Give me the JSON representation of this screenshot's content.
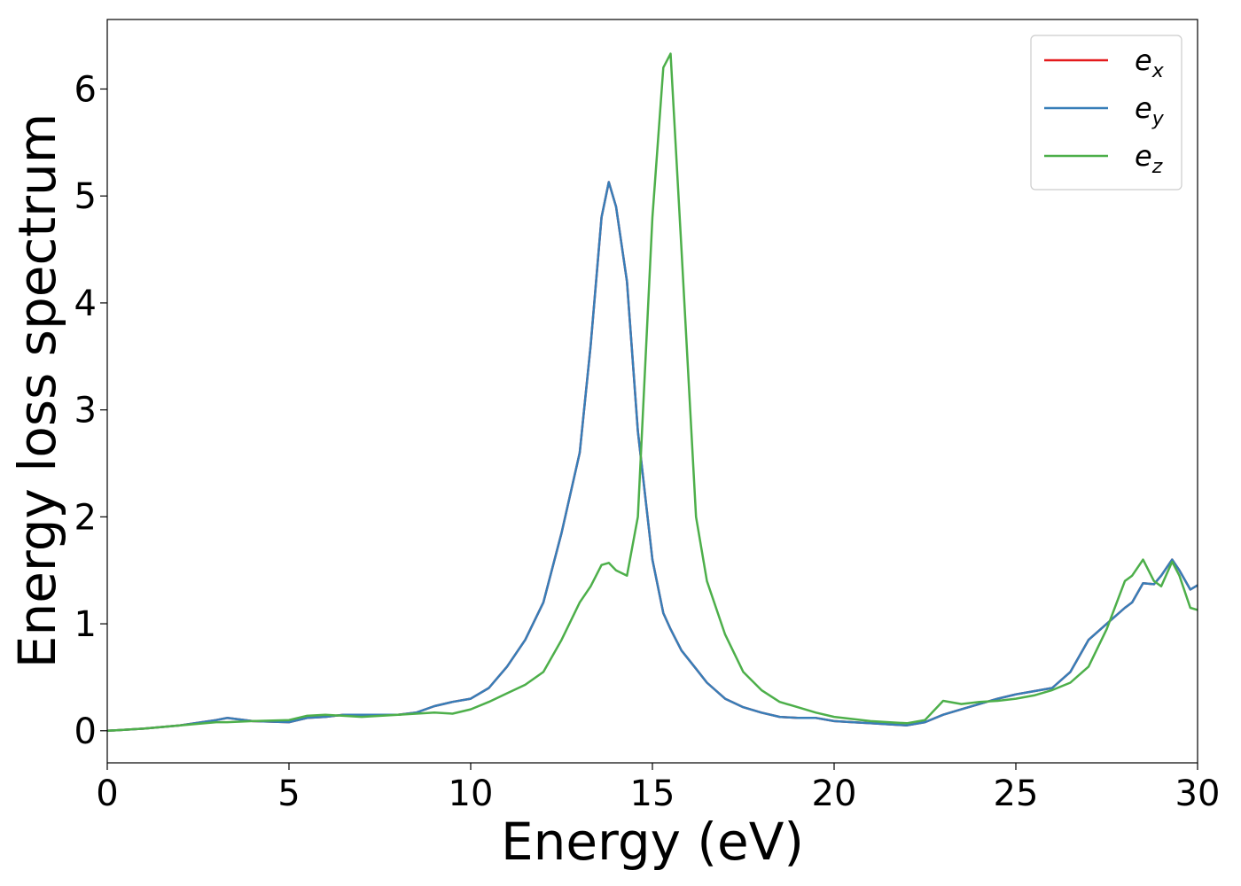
{
  "chart_data": {
    "type": "line",
    "title": "",
    "xlabel": "Energy (eV)",
    "ylabel": "Energy loss spectrum",
    "xlim": [
      0,
      30
    ],
    "ylim": [
      -0.3,
      6.65
    ],
    "xticks": [
      0,
      5,
      10,
      15,
      20,
      25,
      30
    ],
    "yticks": [
      0,
      1,
      2,
      3,
      4,
      5,
      6
    ],
    "grid": false,
    "legend_position": "top-right",
    "legend": [
      {
        "base": "e",
        "sub": "x",
        "color": "#e41a1c"
      },
      {
        "base": "e",
        "sub": "y",
        "color": "#377eb8"
      },
      {
        "base": "e",
        "sub": "z",
        "color": "#4daf4a"
      }
    ],
    "x": [
      0,
      1,
      2,
      3,
      3.3,
      4,
      5,
      5.5,
      6,
      6.5,
      7,
      8,
      8.5,
      9,
      9.5,
      10,
      10.5,
      11,
      11.5,
      12,
      12.5,
      13,
      13.3,
      13.6,
      13.8,
      14.0,
      14.3,
      14.6,
      15.0,
      15.3,
      15.5,
      15.8,
      16.2,
      16.5,
      17,
      17.5,
      18,
      18.5,
      19,
      19.5,
      20,
      20.5,
      21,
      22,
      22.5,
      23,
      23.5,
      24,
      24.5,
      25,
      25.5,
      26,
      26.5,
      27,
      27.5,
      28,
      28.2,
      28.5,
      28.8,
      29.0,
      29.3,
      29.5,
      29.8,
      30
    ],
    "series": [
      {
        "name": "e_x",
        "color": "#e41a1c",
        "values": [
          0,
          0.02,
          0.05,
          0.1,
          0.12,
          0.09,
          0.08,
          0.12,
          0.13,
          0.15,
          0.15,
          0.15,
          0.17,
          0.23,
          0.27,
          0.3,
          0.4,
          0.6,
          0.85,
          1.2,
          1.85,
          2.6,
          3.6,
          4.8,
          5.13,
          4.9,
          4.2,
          2.8,
          1.6,
          1.1,
          0.95,
          0.75,
          0.58,
          0.45,
          0.3,
          0.22,
          0.17,
          0.13,
          0.12,
          0.12,
          0.09,
          0.08,
          0.07,
          0.05,
          0.08,
          0.15,
          0.2,
          0.25,
          0.3,
          0.34,
          0.37,
          0.4,
          0.55,
          0.85,
          1.0,
          1.15,
          1.2,
          1.38,
          1.37,
          1.45,
          1.6,
          1.5,
          1.32,
          1.36
        ]
      },
      {
        "name": "e_y",
        "color": "#377eb8",
        "values": [
          0,
          0.02,
          0.05,
          0.1,
          0.12,
          0.09,
          0.08,
          0.12,
          0.13,
          0.15,
          0.15,
          0.15,
          0.17,
          0.23,
          0.27,
          0.3,
          0.4,
          0.6,
          0.85,
          1.2,
          1.85,
          2.6,
          3.6,
          4.8,
          5.13,
          4.9,
          4.2,
          2.8,
          1.6,
          1.1,
          0.95,
          0.75,
          0.58,
          0.45,
          0.3,
          0.22,
          0.17,
          0.13,
          0.12,
          0.12,
          0.09,
          0.08,
          0.07,
          0.05,
          0.08,
          0.15,
          0.2,
          0.25,
          0.3,
          0.34,
          0.37,
          0.4,
          0.55,
          0.85,
          1.0,
          1.15,
          1.2,
          1.38,
          1.37,
          1.45,
          1.6,
          1.5,
          1.32,
          1.36
        ]
      },
      {
        "name": "e_z",
        "color": "#4daf4a",
        "values": [
          0,
          0.02,
          0.05,
          0.08,
          0.08,
          0.09,
          0.1,
          0.14,
          0.15,
          0.14,
          0.13,
          0.15,
          0.16,
          0.17,
          0.16,
          0.2,
          0.27,
          0.35,
          0.43,
          0.55,
          0.85,
          1.2,
          1.35,
          1.55,
          1.57,
          1.5,
          1.45,
          2.0,
          4.8,
          6.2,
          6.33,
          4.5,
          2.0,
          1.4,
          0.9,
          0.55,
          0.38,
          0.27,
          0.22,
          0.17,
          0.13,
          0.11,
          0.09,
          0.07,
          0.1,
          0.28,
          0.25,
          0.27,
          0.28,
          0.3,
          0.33,
          0.38,
          0.45,
          0.6,
          0.95,
          1.4,
          1.45,
          1.6,
          1.4,
          1.35,
          1.58,
          1.45,
          1.15,
          1.13
        ]
      }
    ]
  }
}
